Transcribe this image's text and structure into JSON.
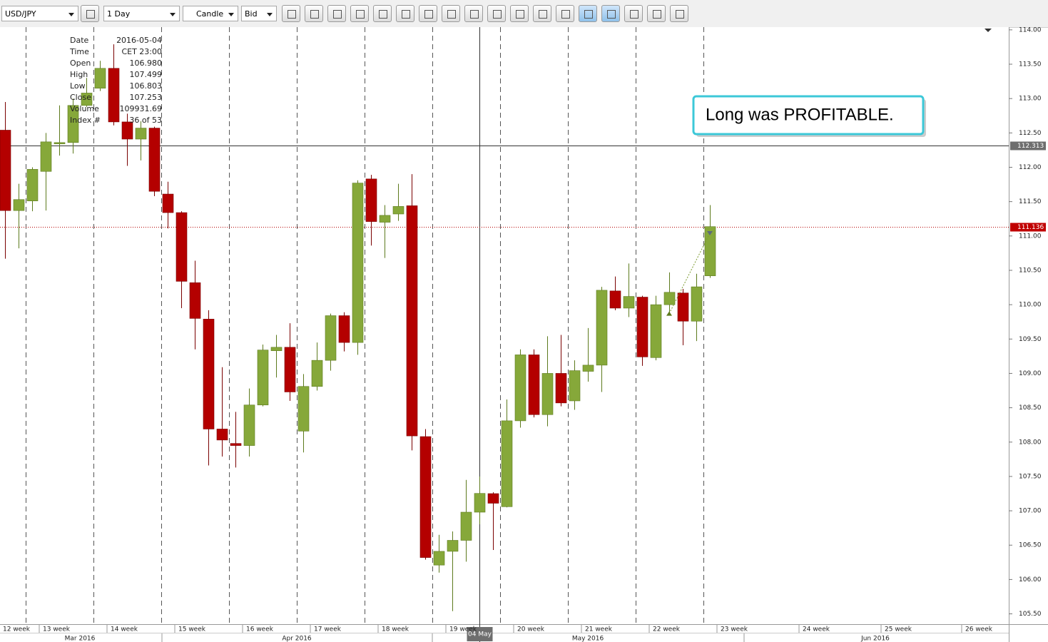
{
  "toolbar": {
    "symbol": "USD/JPY",
    "period": "1 Day",
    "chart_style": "Candle",
    "price_side": "Bid"
  },
  "data_window": {
    "labels": [
      "Date",
      "Time",
      "Open",
      "High",
      "Low",
      "Close",
      "Volume",
      "Index #"
    ],
    "values": [
      "2016-05-04",
      "CET 23:00",
      "106.980",
      "107.499",
      "106.803",
      "107.253",
      "109931.69",
      "36 of 53"
    ]
  },
  "chart_data": {
    "type": "candlestick",
    "annotation": "Long was PROFITABLE.",
    "open": [
      112.54,
      111.37,
      111.51,
      111.94,
      112.34,
      112.36,
      112.9,
      113.15,
      113.44,
      112.66,
      112.41,
      112.57,
      111.61,
      111.34,
      110.32,
      109.79,
      108.19,
      107.98,
      107.95,
      108.54,
      109.33,
      109.38,
      108.16,
      108.81,
      109.19,
      109.84,
      109.45,
      111.83,
      111.2,
      111.32,
      111.44,
      108.08,
      106.21,
      106.41,
      106.57,
      106.98,
      107.25,
      107.06,
      108.31,
      109.27,
      108.4,
      109.0,
      108.6,
      109.03,
      109.12,
      110.2,
      109.95,
      110.11,
      109.23,
      110.0,
      110.17,
      109.76,
      110.42
    ],
    "high": [
      112.95,
      111.76,
      112.0,
      112.5,
      112.9,
      113.0,
      113.3,
      113.55,
      113.79,
      112.78,
      112.67,
      112.59,
      111.79,
      111.36,
      110.64,
      109.92,
      109.09,
      108.44,
      108.78,
      109.42,
      109.56,
      109.73,
      108.99,
      109.45,
      109.87,
      109.89,
      111.81,
      111.89,
      111.45,
      111.76,
      111.9,
      108.19,
      106.65,
      106.7,
      107.45,
      107.499,
      107.27,
      108.62,
      109.35,
      109.35,
      109.54,
      109.56,
      109.19,
      109.66,
      110.26,
      110.41,
      110.6,
      110.13,
      110.13,
      110.47,
      110.23,
      110.45,
      111.45
    ],
    "low": [
      110.67,
      110.82,
      111.36,
      111.37,
      112.17,
      112.2,
      112.88,
      113.11,
      112.61,
      112.02,
      112.1,
      111.58,
      111.11,
      109.95,
      109.35,
      107.66,
      107.79,
      107.63,
      107.79,
      108.52,
      108.94,
      108.6,
      107.85,
      108.75,
      109.04,
      109.32,
      109.27,
      110.86,
      110.68,
      111.22,
      107.88,
      106.29,
      106.1,
      105.54,
      106.26,
      106.803,
      106.43,
      107.05,
      108.21,
      108.36,
      108.23,
      108.52,
      108.47,
      108.88,
      108.73,
      109.92,
      109.82,
      109.11,
      109.19,
      109.87,
      109.41,
      109.47,
      110.39
    ],
    "close": [
      111.37,
      111.53,
      111.97,
      112.37,
      112.36,
      112.9,
      113.08,
      113.44,
      112.66,
      112.41,
      112.57,
      111.65,
      111.34,
      110.34,
      109.8,
      108.19,
      108.03,
      107.95,
      108.54,
      109.34,
      109.38,
      108.73,
      108.81,
      109.19,
      109.84,
      109.45,
      111.77,
      111.21,
      111.3,
      111.43,
      108.09,
      106.32,
      106.41,
      106.57,
      106.98,
      107.253,
      107.11,
      108.31,
      109.27,
      108.4,
      109.0,
      108.57,
      109.04,
      109.12,
      110.21,
      109.95,
      110.12,
      109.24,
      110.0,
      110.18,
      109.76,
      110.26,
      111.136
    ],
    "colors": {
      "up": "#86a83a",
      "down": "#b40000"
    },
    "ylim": [
      105.35,
      114.04
    ],
    "yticks": [
      {
        "value": 105.5,
        "label": "105.50"
      },
      {
        "value": 106,
        "label": "106.00"
      },
      {
        "value": 106.5,
        "label": "106.50"
      },
      {
        "value": 107,
        "label": "107.00"
      },
      {
        "value": 107.5,
        "label": "107.50"
      },
      {
        "value": 108,
        "label": "108.00"
      },
      {
        "value": 108.5,
        "label": "108.50"
      },
      {
        "value": 109,
        "label": "109.00"
      },
      {
        "value": 109.5,
        "label": "109.50"
      },
      {
        "value": 110,
        "label": "110.00"
      },
      {
        "value": 110.5,
        "label": "110.50"
      },
      {
        "value": 111,
        "label": "111.00"
      },
      {
        "value": 111.5,
        "label": "111.50"
      },
      {
        "value": 112,
        "label": "112.00"
      },
      {
        "value": 112.5,
        "label": "112.50"
      },
      {
        "value": 113,
        "label": "113.00"
      },
      {
        "value": 113.5,
        "label": "113.50"
      },
      {
        "value": 114,
        "label": "114.00"
      }
    ],
    "week_labels": [
      "12 week",
      "13 week",
      "14 week",
      "15 week",
      "16 week",
      "17 week",
      "18 week",
      "19 week",
      "20 week",
      "21 week",
      "22 week",
      "23 week",
      "24 week",
      "25 week",
      "26 week"
    ],
    "month_labels": [
      "Mar 2016",
      "Apr 2016",
      "May 2016",
      "Jun 2016"
    ],
    "crosshair": {
      "candle": 36,
      "price": 112.313,
      "label": "04 May"
    },
    "last_price": 111.136,
    "trade": {
      "entry_candle": 50,
      "entry_price": 109.87,
      "exit_candle": 53,
      "exit_price": 111.04
    }
  }
}
